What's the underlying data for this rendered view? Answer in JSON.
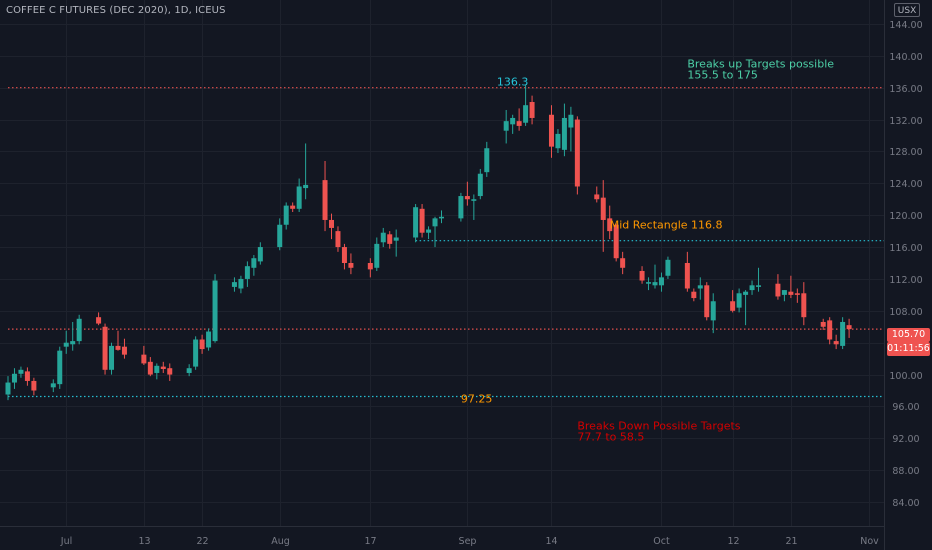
{
  "header": {
    "symbol": "COFFEE C FUTURES (DEC 2020), 1D, ICEUS",
    "currency": "USX"
  },
  "price_tags": {
    "last_price": "105.70",
    "countdown": "01:11:56"
  },
  "colors": {
    "background": "#131722",
    "grid": "#1e222d",
    "up": "#26a69a",
    "down": "#ef5350",
    "text": "#787b86",
    "annotation_cyan": "#26c6da",
    "annotation_orange": "#ff9800",
    "annotation_red": "#d50000",
    "annotation_green": "#4dd0a7"
  },
  "chart_data": {
    "type": "candlestick",
    "title": "COFFEE C FUTURES (DEC 2020), 1D, ICEUS",
    "y_axis": {
      "ticks": [
        "84.00",
        "88.00",
        "92.00",
        "96.00",
        "100.00",
        "104.00",
        "108.00",
        "112.00",
        "116.00",
        "120.00",
        "124.00",
        "128.00",
        "132.00",
        "136.00",
        "140.00",
        "144.00"
      ],
      "range": [
        81,
        147
      ],
      "position": "right"
    },
    "x_axis": {
      "ticks": [
        "Jul",
        "13",
        "22",
        "Aug",
        "17",
        "Sep",
        "14",
        "Oct",
        "12",
        "21",
        "Nov"
      ],
      "range": [
        "2020-06-22",
        "2020-11-08"
      ]
    },
    "grid": true,
    "horizontal_lines": [
      {
        "value": 136.0,
        "color": "#ef5350",
        "style": "dotted",
        "from": "2020-06-22",
        "to": "2020-11-08"
      },
      {
        "value": 116.8,
        "color": "#26c6da",
        "style": "dotted",
        "from": "2020-08-24",
        "to": "2020-11-08"
      },
      {
        "value": 97.25,
        "color": "#26c6da",
        "style": "dotted",
        "from": "2020-06-22",
        "to": "2020-11-08"
      },
      {
        "value": 105.7,
        "color": "#ef5350",
        "style": "dotted",
        "from": "2020-06-22",
        "to": "2020-11-08"
      }
    ],
    "annotations": [
      {
        "lines": [
          "136.3"
        ],
        "value": 136.3,
        "date": "2020-09-08",
        "color": "#26c6da",
        "anchor": "middle"
      },
      {
        "lines": [
          "Breaks up Targets possible",
          "155.5 to 175"
        ],
        "value": 138.5,
        "date": "2020-10-05",
        "color": "#4dd0a7",
        "anchor": "start"
      },
      {
        "lines": [
          "Mid Rectangle 116.8"
        ],
        "value": 118.3,
        "date": "2020-09-23",
        "color": "#ff9800",
        "anchor": "start"
      },
      {
        "lines": [
          "97.25"
        ],
        "value": 96.5,
        "date": "2020-08-31",
        "color": "#ff9800",
        "anchor": "start"
      },
      {
        "lines": [
          "Breaks Down Possible Targets",
          "77.7 to 58.5"
        ],
        "value": 93.1,
        "date": "2020-09-18",
        "color": "#d50000",
        "anchor": "start"
      }
    ],
    "candles": [
      {
        "date": "2020-06-22",
        "o": 97.5,
        "h": 99.8,
        "l": 96.8,
        "c": 99.0
      },
      {
        "date": "2020-06-23",
        "o": 99.0,
        "h": 100.8,
        "l": 98.2,
        "c": 100.1
      },
      {
        "date": "2020-06-24",
        "o": 100.1,
        "h": 101.0,
        "l": 99.6,
        "c": 100.6
      },
      {
        "date": "2020-06-25",
        "o": 100.4,
        "h": 100.9,
        "l": 98.6,
        "c": 99.2
      },
      {
        "date": "2020-06-26",
        "o": 99.2,
        "h": 99.6,
        "l": 97.4,
        "c": 98.0
      },
      {
        "date": "2020-06-29",
        "o": 98.4,
        "h": 99.4,
        "l": 97.8,
        "c": 98.9
      },
      {
        "date": "2020-06-30",
        "o": 98.8,
        "h": 103.5,
        "l": 98.2,
        "c": 103.0
      },
      {
        "date": "2020-07-01",
        "o": 103.5,
        "h": 105.5,
        "l": 102.6,
        "c": 104.0
      },
      {
        "date": "2020-07-02",
        "o": 103.8,
        "h": 106.6,
        "l": 103.0,
        "c": 104.2
      },
      {
        "date": "2020-07-03",
        "o": 104.2,
        "h": 107.5,
        "l": 103.8,
        "c": 107.0
      },
      {
        "date": "2020-07-06",
        "o": 107.2,
        "h": 107.8,
        "l": 106.2,
        "c": 106.4
      },
      {
        "date": "2020-07-07",
        "o": 106.0,
        "h": 106.4,
        "l": 100.0,
        "c": 100.6
      },
      {
        "date": "2020-07-08",
        "o": 100.6,
        "h": 104.0,
        "l": 100.0,
        "c": 103.6
      },
      {
        "date": "2020-07-09",
        "o": 103.6,
        "h": 105.5,
        "l": 103.0,
        "c": 103.1
      },
      {
        "date": "2020-07-10",
        "o": 103.5,
        "h": 104.5,
        "l": 102.0,
        "c": 102.5
      },
      {
        "date": "2020-07-13",
        "o": 102.5,
        "h": 103.6,
        "l": 101.2,
        "c": 101.4
      },
      {
        "date": "2020-07-14",
        "o": 101.6,
        "h": 102.2,
        "l": 99.8,
        "c": 100.0
      },
      {
        "date": "2020-07-15",
        "o": 100.2,
        "h": 101.4,
        "l": 99.4,
        "c": 101.1
      },
      {
        "date": "2020-07-16",
        "o": 101.0,
        "h": 101.6,
        "l": 100.2,
        "c": 100.7
      },
      {
        "date": "2020-07-17",
        "o": 100.8,
        "h": 101.4,
        "l": 99.2,
        "c": 100.0
      },
      {
        "date": "2020-07-20",
        "o": 100.2,
        "h": 101.3,
        "l": 99.8,
        "c": 100.8
      },
      {
        "date": "2020-07-21",
        "o": 101.0,
        "h": 104.8,
        "l": 100.6,
        "c": 104.4
      },
      {
        "date": "2020-07-22",
        "o": 104.4,
        "h": 105.0,
        "l": 102.6,
        "c": 103.2
      },
      {
        "date": "2020-07-23",
        "o": 103.4,
        "h": 105.8,
        "l": 103.0,
        "c": 105.4
      },
      {
        "date": "2020-07-24",
        "o": 104.2,
        "h": 112.6,
        "l": 104.0,
        "c": 111.8
      },
      {
        "date": "2020-07-27",
        "o": 111.0,
        "h": 112.2,
        "l": 110.4,
        "c": 111.6
      },
      {
        "date": "2020-07-28",
        "o": 110.8,
        "h": 112.4,
        "l": 110.2,
        "c": 112.0
      },
      {
        "date": "2020-07-29",
        "o": 112.0,
        "h": 114.2,
        "l": 111.0,
        "c": 113.6
      },
      {
        "date": "2020-07-30",
        "o": 113.4,
        "h": 115.0,
        "l": 112.4,
        "c": 114.6
      },
      {
        "date": "2020-07-31",
        "o": 114.2,
        "h": 116.6,
        "l": 113.8,
        "c": 116.0
      },
      {
        "date": "2020-08-03",
        "o": 116.0,
        "h": 119.6,
        "l": 115.6,
        "c": 118.8
      },
      {
        "date": "2020-08-04",
        "o": 118.8,
        "h": 121.6,
        "l": 118.2,
        "c": 121.2
      },
      {
        "date": "2020-08-05",
        "o": 121.2,
        "h": 121.6,
        "l": 120.4,
        "c": 120.8
      },
      {
        "date": "2020-08-06",
        "o": 120.8,
        "h": 124.6,
        "l": 120.4,
        "c": 123.6
      },
      {
        "date": "2020-08-07",
        "o": 123.4,
        "h": 129.0,
        "l": 122.0,
        "c": 123.8
      },
      {
        "date": "2020-08-10",
        "o": 124.4,
        "h": 126.8,
        "l": 118.0,
        "c": 119.4
      },
      {
        "date": "2020-08-11",
        "o": 119.4,
        "h": 120.2,
        "l": 117.0,
        "c": 118.4
      },
      {
        "date": "2020-08-12",
        "o": 118.0,
        "h": 118.6,
        "l": 115.4,
        "c": 116.0
      },
      {
        "date": "2020-08-13",
        "o": 116.0,
        "h": 116.4,
        "l": 113.2,
        "c": 114.0
      },
      {
        "date": "2020-08-14",
        "o": 114.0,
        "h": 115.2,
        "l": 112.6,
        "c": 113.4
      },
      {
        "date": "2020-08-17",
        "o": 114.0,
        "h": 114.6,
        "l": 112.2,
        "c": 113.2
      },
      {
        "date": "2020-08-18",
        "o": 113.4,
        "h": 117.2,
        "l": 113.0,
        "c": 116.4
      },
      {
        "date": "2020-08-19",
        "o": 116.6,
        "h": 118.4,
        "l": 116.0,
        "c": 117.8
      },
      {
        "date": "2020-08-20",
        "o": 117.6,
        "h": 118.0,
        "l": 115.8,
        "c": 116.4
      },
      {
        "date": "2020-08-21",
        "o": 116.8,
        "h": 118.2,
        "l": 114.8,
        "c": 117.2
      },
      {
        "date": "2020-08-24",
        "o": 117.2,
        "h": 121.4,
        "l": 116.6,
        "c": 121.0
      },
      {
        "date": "2020-08-25",
        "o": 120.8,
        "h": 121.4,
        "l": 117.2,
        "c": 117.8
      },
      {
        "date": "2020-08-26",
        "o": 117.8,
        "h": 118.6,
        "l": 117.0,
        "c": 118.2
      },
      {
        "date": "2020-08-27",
        "o": 118.6,
        "h": 119.8,
        "l": 116.0,
        "c": 119.6
      },
      {
        "date": "2020-08-28",
        "o": 119.6,
        "h": 120.6,
        "l": 119.0,
        "c": 119.8
      },
      {
        "date": "2020-08-31",
        "o": 119.6,
        "h": 122.8,
        "l": 119.2,
        "c": 122.4
      },
      {
        "date": "2020-09-01",
        "o": 122.4,
        "h": 124.2,
        "l": 121.2,
        "c": 122.0
      },
      {
        "date": "2020-09-02",
        "o": 121.8,
        "h": 122.6,
        "l": 119.4,
        "c": 122.0
      },
      {
        "date": "2020-09-03",
        "o": 122.4,
        "h": 125.8,
        "l": 122.0,
        "c": 125.2
      },
      {
        "date": "2020-09-04",
        "o": 125.4,
        "h": 129.2,
        "l": 124.8,
        "c": 128.4
      },
      {
        "date": "2020-09-07",
        "o": 130.6,
        "h": 133.2,
        "l": 129.0,
        "c": 131.8
      },
      {
        "date": "2020-09-08",
        "o": 131.4,
        "h": 132.6,
        "l": 130.2,
        "c": 132.2
      },
      {
        "date": "2020-09-09",
        "o": 131.8,
        "h": 133.4,
        "l": 130.6,
        "c": 131.2
      },
      {
        "date": "2020-09-10",
        "o": 131.6,
        "h": 136.3,
        "l": 131.2,
        "c": 133.8
      },
      {
        "date": "2020-09-11",
        "o": 134.2,
        "h": 135.0,
        "l": 131.4,
        "c": 132.2
      },
      {
        "date": "2020-09-14",
        "o": 132.6,
        "h": 133.8,
        "l": 127.2,
        "c": 128.6
      },
      {
        "date": "2020-09-15",
        "o": 128.4,
        "h": 130.8,
        "l": 127.8,
        "c": 130.2
      },
      {
        "date": "2020-09-16",
        "o": 128.2,
        "h": 134.0,
        "l": 127.4,
        "c": 132.2
      },
      {
        "date": "2020-09-17",
        "o": 131.0,
        "h": 133.6,
        "l": 128.0,
        "c": 132.6
      },
      {
        "date": "2020-09-18",
        "o": 132.0,
        "h": 132.4,
        "l": 122.6,
        "c": 123.6
      },
      {
        "date": "2020-09-21",
        "o": 122.6,
        "h": 123.6,
        "l": 121.6,
        "c": 122.0
      },
      {
        "date": "2020-09-22",
        "o": 122.2,
        "h": 124.4,
        "l": 115.4,
        "c": 119.4
      },
      {
        "date": "2020-09-23",
        "o": 119.6,
        "h": 121.2,
        "l": 117.0,
        "c": 118.0
      },
      {
        "date": "2020-09-24",
        "o": 118.8,
        "h": 119.0,
        "l": 114.2,
        "c": 114.6
      },
      {
        "date": "2020-09-25",
        "o": 114.6,
        "h": 115.4,
        "l": 112.6,
        "c": 113.4
      },
      {
        "date": "2020-09-28",
        "o": 113.0,
        "h": 113.6,
        "l": 111.4,
        "c": 111.8
      },
      {
        "date": "2020-09-29",
        "o": 111.4,
        "h": 112.2,
        "l": 110.6,
        "c": 111.6
      },
      {
        "date": "2020-09-30",
        "o": 111.2,
        "h": 113.8,
        "l": 110.8,
        "c": 111.6
      },
      {
        "date": "2020-10-01",
        "o": 111.2,
        "h": 112.8,
        "l": 110.4,
        "c": 112.2
      },
      {
        "date": "2020-10-02",
        "o": 112.4,
        "h": 114.8,
        "l": 112.0,
        "c": 114.4
      },
      {
        "date": "2020-10-05",
        "o": 114.0,
        "h": 115.4,
        "l": 110.4,
        "c": 110.8
      },
      {
        "date": "2020-10-06",
        "o": 110.4,
        "h": 110.8,
        "l": 109.2,
        "c": 109.6
      },
      {
        "date": "2020-10-07",
        "o": 110.8,
        "h": 112.2,
        "l": 109.4,
        "c": 111.2
      },
      {
        "date": "2020-10-08",
        "o": 111.2,
        "h": 111.6,
        "l": 106.8,
        "c": 107.2
      },
      {
        "date": "2020-10-09",
        "o": 106.8,
        "h": 110.2,
        "l": 105.2,
        "c": 109.2
      },
      {
        "date": "2020-10-12",
        "o": 109.2,
        "h": 110.6,
        "l": 107.8,
        "c": 108.0
      },
      {
        "date": "2020-10-13",
        "o": 108.4,
        "h": 110.8,
        "l": 107.8,
        "c": 110.2
      },
      {
        "date": "2020-10-14",
        "o": 110.0,
        "h": 110.6,
        "l": 106.2,
        "c": 110.4
      },
      {
        "date": "2020-10-15",
        "o": 110.6,
        "h": 111.8,
        "l": 110.0,
        "c": 111.2
      },
      {
        "date": "2020-10-16",
        "o": 111.0,
        "h": 113.4,
        "l": 110.4,
        "c": 111.2
      },
      {
        "date": "2020-10-19",
        "o": 111.4,
        "h": 112.6,
        "l": 109.4,
        "c": 109.8
      },
      {
        "date": "2020-10-20",
        "o": 110.0,
        "h": 110.6,
        "l": 109.2,
        "c": 110.6
      },
      {
        "date": "2020-10-21",
        "o": 110.4,
        "h": 112.4,
        "l": 109.6,
        "c": 110.0
      },
      {
        "date": "2020-10-22",
        "o": 110.2,
        "h": 110.8,
        "l": 109.0,
        "c": 110.0
      },
      {
        "date": "2020-10-23",
        "o": 110.2,
        "h": 111.6,
        "l": 106.2,
        "c": 107.2
      },
      {
        "date": "2020-10-26",
        "o": 106.6,
        "h": 107.0,
        "l": 105.6,
        "c": 106.0
      },
      {
        "date": "2020-10-27",
        "o": 106.8,
        "h": 107.2,
        "l": 103.8,
        "c": 104.4
      },
      {
        "date": "2020-10-28",
        "o": 104.2,
        "h": 105.0,
        "l": 103.2,
        "c": 103.8
      },
      {
        "date": "2020-10-29",
        "o": 103.6,
        "h": 107.2,
        "l": 103.2,
        "c": 106.6
      },
      {
        "date": "2020-10-30",
        "o": 106.2,
        "h": 107.0,
        "l": 104.6,
        "c": 105.7
      }
    ]
  }
}
